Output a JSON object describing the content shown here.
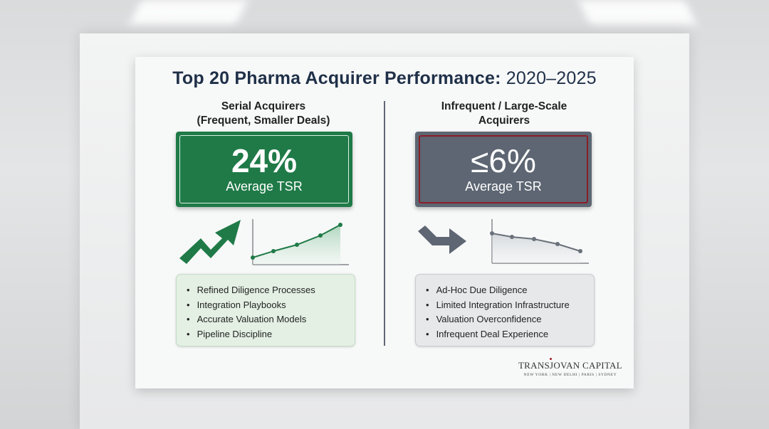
{
  "slide": {
    "title_main": "Top 20 Pharma Acquirer Performance:",
    "title_years": "2020–2025"
  },
  "left": {
    "heading_line1": "Serial Acquirers",
    "heading_line2": "(Frequent, Smaller Deals)",
    "metric_value": "24%",
    "metric_label": "Average TSR",
    "trend_icon": "up-trend-arrow-icon",
    "chart_data": {
      "type": "line",
      "direction": "increasing",
      "points": 5,
      "color": "#1f7a47"
    },
    "bullets": [
      "Refined Diligence Processes",
      "Integration Playbooks",
      "Accurate Valuation Models",
      "Pipeline Discipline"
    ]
  },
  "right": {
    "heading_line1": "Infrequent / Large-Scale",
    "heading_line2": "Acquirers",
    "metric_value": "≤6%",
    "metric_label": "Average TSR",
    "trend_icon": "down-turn-arrow-icon",
    "chart_data": {
      "type": "line",
      "direction": "decreasing",
      "points": 5,
      "color": "#5d6672"
    },
    "bullets": [
      "Ad-Hoc Due Diligence",
      "Limited Integration Infrastructure",
      "Valuation Overconfidence",
      "Infrequent Deal Experience"
    ]
  },
  "logo": {
    "name": "TRANSJOVAN CAPITAL",
    "cities": "NEW YORK | NEW DELHI | PARIS | SYDNEY"
  },
  "colors": {
    "green": "#1f7a47",
    "gray": "#5d6672",
    "accent_red": "#8a1e28",
    "title": "#1f3048"
  }
}
